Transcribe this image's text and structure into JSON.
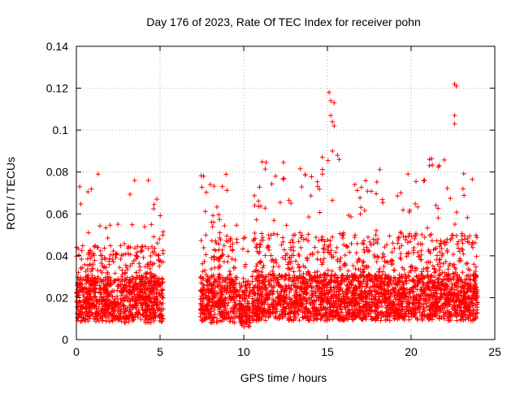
{
  "chart_data": {
    "type": "scatter",
    "title": "Day 176 of 2023, Rate Of TEC Index for receiver pohn",
    "xlabel": "GPS time / hours",
    "ylabel": "ROTI / TECUs",
    "xlim": [
      0,
      25
    ],
    "ylim": [
      0,
      0.14
    ],
    "xticks": [
      0,
      5,
      10,
      15,
      20,
      25
    ],
    "xtick_labels": [
      "0",
      "5",
      "10",
      "15",
      "20",
      "25"
    ],
    "yticks": [
      0,
      0.02,
      0.04,
      0.06,
      0.08,
      0.1,
      0.12,
      0.14
    ],
    "ytick_labels": [
      "0",
      "0.02",
      "0.04",
      "0.06",
      "0.08",
      "0.1",
      "0.12",
      "0.14"
    ],
    "grid": true,
    "marker": "+",
    "color": "#ff0000",
    "series": [
      {
        "name": "ROTI",
        "segments": [
          {
            "start": 0.0,
            "end": 5.2,
            "base": 0.016,
            "spread": 0.035,
            "peak": 0.076
          },
          {
            "start": 7.4,
            "end": 9.6,
            "base": 0.016,
            "spread": 0.04,
            "peak": 0.079
          },
          {
            "start": 9.7,
            "end": 10.4,
            "base": 0.014,
            "spread": 0.01,
            "peak": 0.057
          },
          {
            "start": 10.5,
            "end": 24.0,
            "base": 0.017,
            "spread": 0.04,
            "peak": 0.088
          }
        ],
        "outliers": [
          {
            "x": 15.1,
            "y": 0.118
          },
          {
            "x": 15.2,
            "y": 0.114
          },
          {
            "x": 15.4,
            "y": 0.113
          },
          {
            "x": 15.2,
            "y": 0.107
          },
          {
            "x": 15.3,
            "y": 0.104
          },
          {
            "x": 15.4,
            "y": 0.102
          },
          {
            "x": 15.6,
            "y": 0.088
          },
          {
            "x": 15.7,
            "y": 0.086
          },
          {
            "x": 15.3,
            "y": 0.09
          },
          {
            "x": 22.6,
            "y": 0.122
          },
          {
            "x": 22.7,
            "y": 0.121
          },
          {
            "x": 22.6,
            "y": 0.107
          },
          {
            "x": 22.6,
            "y": 0.103
          },
          {
            "x": 21.1,
            "y": 0.086
          },
          {
            "x": 21.1,
            "y": 0.083
          },
          {
            "x": 1.3,
            "y": 0.079
          },
          {
            "x": 0.2,
            "y": 0.073
          },
          {
            "x": 4.3,
            "y": 0.076
          },
          {
            "x": 7.6,
            "y": 0.078
          },
          {
            "x": 8.0,
            "y": 0.074
          },
          {
            "x": 11.9,
            "y": 0.078
          },
          {
            "x": 12.4,
            "y": 0.077
          },
          {
            "x": 14.7,
            "y": 0.079
          },
          {
            "x": 20.8,
            "y": 0.076
          },
          {
            "x": 23.1,
            "y": 0.072
          }
        ]
      }
    ]
  }
}
